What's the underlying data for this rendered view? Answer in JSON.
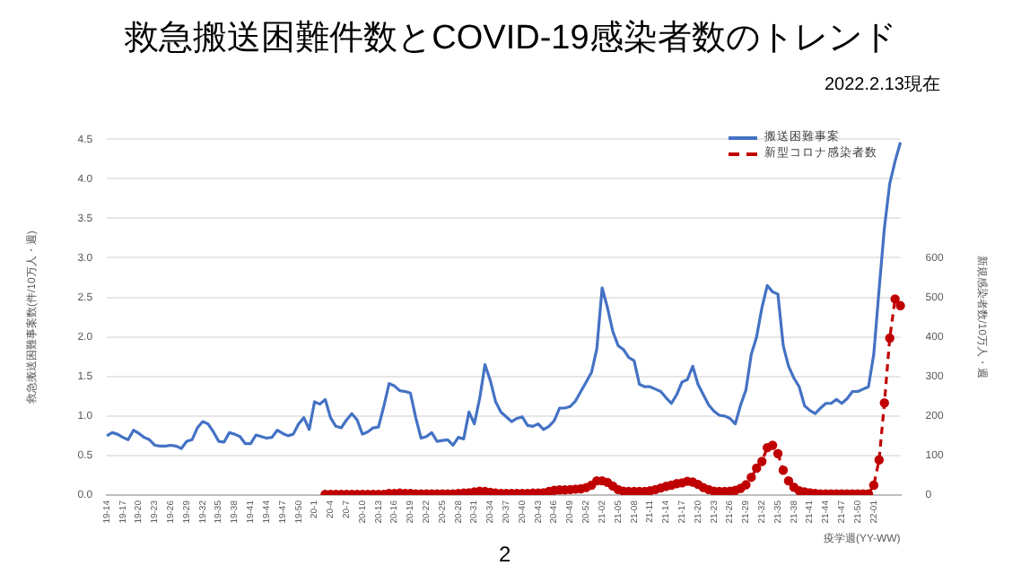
{
  "chart_data": {
    "type": "line",
    "title": "救急搬送困難件数とCOVID-19感染者数のトレンド",
    "subtitle": "2022.2.13現在",
    "xlabel": "疫学週(YY-WW)",
    "ylabel": "救急搬送困難事案数(件/10万人・週)",
    "y2label": "新規感染者数/10万人・週",
    "annotations": [
      "2"
    ],
    "categories": [
      "19-14",
      null,
      null,
      "19-17",
      null,
      null,
      "19-20",
      null,
      null,
      "19-23",
      null,
      null,
      "19-26",
      null,
      null,
      "19-29",
      null,
      null,
      "19-32",
      null,
      null,
      "19-35",
      null,
      null,
      "19-38",
      null,
      null,
      "19-41",
      null,
      null,
      "19-44",
      null,
      null,
      "19-47",
      null,
      null,
      "19-50",
      null,
      null,
      "20-1",
      null,
      null,
      "20-4",
      null,
      null,
      "20-7",
      null,
      null,
      "20-10",
      null,
      null,
      "20-13",
      null,
      null,
      "20-16",
      null,
      null,
      "20-19",
      null,
      null,
      "20-22",
      null,
      null,
      "20-25",
      null,
      null,
      "20-28",
      null,
      null,
      "20-31",
      null,
      null,
      "20-34",
      null,
      null,
      "20-37",
      null,
      null,
      "20-40",
      null,
      null,
      "20-43",
      null,
      null,
      "20-46",
      null,
      null,
      "20-49",
      null,
      null,
      "20-52",
      null,
      null,
      "21-02",
      null,
      null,
      "21-05",
      null,
      null,
      "21-08",
      null,
      null,
      "21-11",
      null,
      null,
      "21-14",
      null,
      null,
      "21-17",
      null,
      null,
      "21-20",
      null,
      null,
      "21-23",
      null,
      null,
      "21-26",
      null,
      null,
      "21-29",
      null,
      null,
      "21-32",
      null,
      null,
      "21-35",
      null,
      null,
      "21-38",
      null,
      null,
      "21-41",
      null,
      null,
      "21-44",
      null,
      null,
      "21-47",
      null,
      null,
      "21-50",
      null,
      null,
      "22-01",
      null,
      null,
      null,
      null,
      null
    ],
    "series": [
      {
        "name": "搬送困難事案",
        "color": "#4472c4",
        "marker": "none",
        "line_style": "solid",
        "values": [
          0.75,
          0.79,
          0.77,
          0.73,
          0.7,
          0.82,
          0.78,
          0.73,
          0.7,
          0.63,
          0.62,
          0.62,
          0.63,
          0.62,
          0.59,
          0.68,
          0.7,
          0.85,
          0.93,
          0.9,
          0.8,
          0.68,
          0.67,
          0.79,
          0.77,
          0.74,
          0.65,
          0.65,
          0.76,
          0.74,
          0.72,
          0.73,
          0.82,
          0.78,
          0.75,
          0.77,
          0.9,
          0.98,
          0.83,
          1.18,
          1.15,
          1.21,
          0.98,
          0.87,
          0.85,
          0.95,
          1.03,
          0.95,
          0.77,
          0.8,
          0.85,
          0.86,
          1.12,
          1.41,
          1.38,
          1.32,
          1.31,
          1.29,
          0.98,
          0.72,
          0.74,
          0.79,
          0.68,
          0.69,
          0.7,
          0.63,
          0.73,
          0.71,
          1.05,
          0.9,
          1.22,
          1.65,
          1.45,
          1.18,
          1.05,
          0.99,
          0.93,
          0.97,
          0.99,
          0.88,
          0.87,
          0.9,
          0.83,
          0.87,
          0.94,
          1.1,
          1.1,
          1.12,
          1.19,
          1.31,
          1.43,
          1.55,
          1.85,
          2.62,
          2.37,
          2.07,
          1.89,
          1.84,
          1.74,
          1.7,
          1.4,
          1.37,
          1.37,
          1.34,
          1.31,
          1.23,
          1.16,
          1.27,
          1.43,
          1.46,
          1.63,
          1.4,
          1.27,
          1.14,
          1.06,
          1.01,
          1.0,
          0.97,
          0.9,
          1.14,
          1.33,
          1.78,
          2.0,
          2.37,
          2.65,
          2.57,
          2.54,
          1.89,
          1.63,
          1.48,
          1.37,
          1.13,
          1.07,
          1.03,
          1.1,
          1.16,
          1.16,
          1.21,
          1.16,
          1.22,
          1.31,
          1.31,
          1.34,
          1.37,
          1.78,
          2.6,
          3.38,
          3.94,
          4.22,
          4.46
        ]
      },
      {
        "name": "新型コロナ感染者数",
        "color": "#c00000",
        "axis": "y2",
        "marker": "circle",
        "line_style": "dashed",
        "values": [
          null,
          null,
          null,
          null,
          null,
          null,
          null,
          null,
          null,
          null,
          null,
          null,
          null,
          null,
          null,
          null,
          null,
          null,
          null,
          null,
          null,
          null,
          null,
          null,
          null,
          null,
          null,
          null,
          null,
          null,
          null,
          null,
          null,
          null,
          null,
          null,
          null,
          null,
          null,
          null,
          null,
          2,
          2,
          2,
          2,
          2,
          2,
          2,
          2,
          2,
          2,
          2,
          2,
          4,
          4,
          5,
          4,
          4,
          3,
          3,
          3,
          3,
          3,
          3,
          3,
          3,
          4,
          5,
          6,
          8,
          10,
          9,
          7,
          5,
          4,
          4,
          4,
          4,
          4,
          4,
          5,
          5,
          6,
          9,
          12,
          13,
          13,
          14,
          15,
          16,
          19,
          25,
          36,
          36,
          32,
          23,
          14,
          10,
          9,
          9,
          9,
          9,
          11,
          14,
          18,
          22,
          25,
          29,
          31,
          35,
          33,
          27,
          19,
          14,
          10,
          9,
          9,
          10,
          12,
          17,
          26,
          45,
          68,
          85,
          120,
          126,
          105,
          63,
          36,
          20,
          11,
          8,
          6,
          4,
          3,
          3,
          3,
          3,
          3,
          3,
          3,
          3,
          3,
          3,
          25,
          89,
          233,
          397,
          496,
          479
        ]
      }
    ],
    "ylim": [
      0,
      4.5
    ],
    "yticks": [
      {
        "value": 0,
        "label": "0.0"
      },
      0.5,
      {
        "value": 1,
        "label": "1.0"
      },
      1.5,
      {
        "value": 2,
        "label": "2.0"
      },
      2.5,
      {
        "value": 3,
        "label": "3.0"
      },
      3.5,
      {
        "value": 4,
        "label": "4.0"
      },
      4.5
    ],
    "y2lim": [
      0,
      900
    ],
    "y2ticks": [
      0,
      100,
      200,
      300,
      400,
      500,
      600
    ],
    "grid": "y",
    "legend": "top right"
  }
}
